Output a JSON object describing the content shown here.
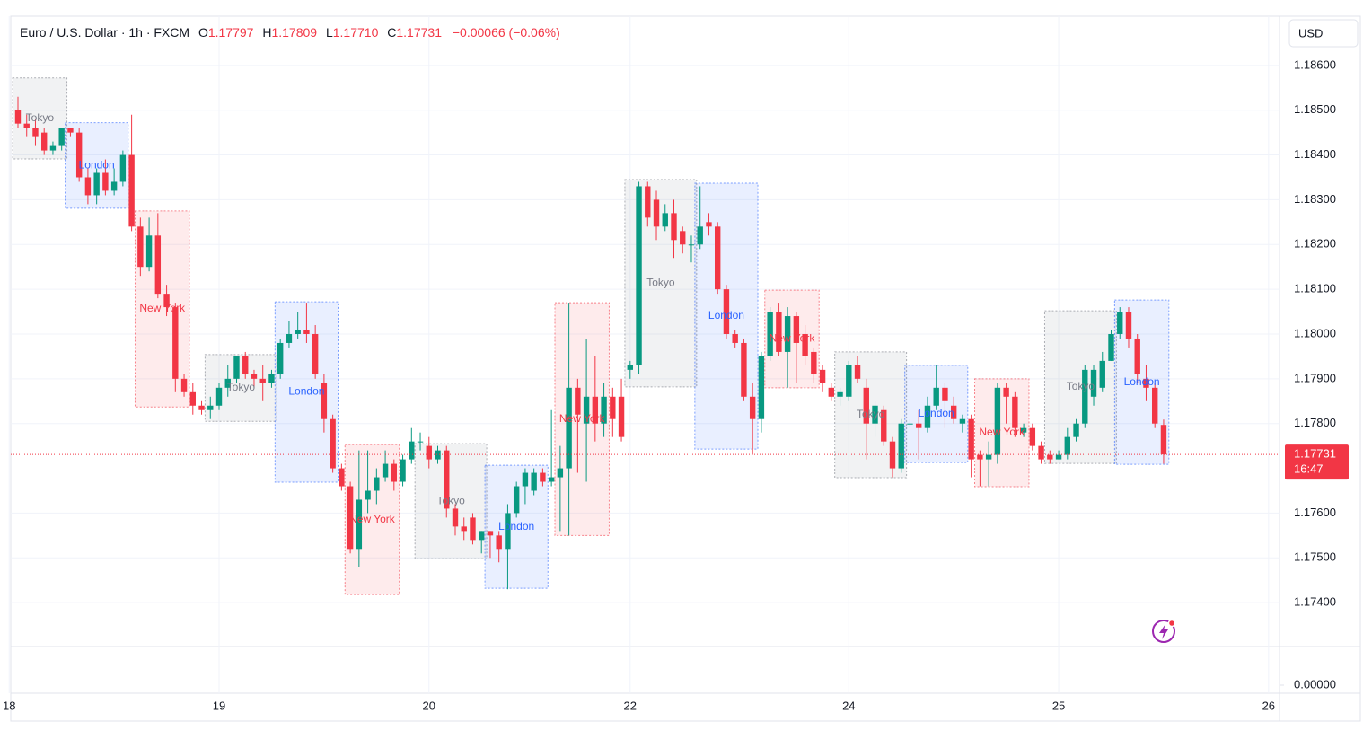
{
  "chart_data": {
    "type": "candlestick",
    "title": "Euro / U.S. Dollar · 1h · FXCM",
    "legend": [
      {
        "label": "O",
        "value": "1.17797"
      },
      {
        "label": "H",
        "value": "1.17809"
      },
      {
        "label": "L",
        "value": "1.17710"
      },
      {
        "label": "C",
        "value": "1.17731"
      }
    ],
    "change": "−0.00066 (−0.06%)",
    "currency": "USD",
    "countdown": "16:47",
    "up_color": "#089981",
    "down_color": "#f23645",
    "grid": true,
    "open": [
      1.185,
      1.1847,
      1.1846,
      1.1845,
      1.1841,
      1.1842,
      1.1846,
      1.1845,
      1.1835,
      1.1831,
      1.1836,
      1.1832,
      1.1834,
      1.184,
      1.1824,
      1.1815,
      1.1822,
      1.1809,
      1.1806,
      1.179,
      1.1787,
      1.1784,
      1.1783,
      1.1784,
      1.1788,
      1.179,
      1.1795,
      1.1791,
      1.179,
      1.1789,
      1.1791,
      1.1798,
      1.18,
      1.1801,
      1.18,
      1.1789,
      1.1781,
      1.177,
      1.1766,
      1.1752,
      1.1763,
      1.1765,
      1.1768,
      1.1771,
      1.1767,
      1.1772,
      1.1776,
      1.1775,
      1.1772,
      1.1774,
      1.1761,
      1.1757,
      1.1759,
      1.1754,
      1.1756,
      1.1755,
      1.1752,
      1.176,
      1.1766,
      1.1765,
      1.1769,
      1.1767,
      1.1768,
      1.177,
      1.1788,
      1.178,
      1.1786,
      1.178,
      1.1786,
      1.1786,
      1.1792,
      1.1793,
      1.1833,
      1.183,
      1.1824,
      1.1827,
      1.1823,
      1.182,
      1.182,
      1.1825,
      1.1824,
      1.181,
      1.18,
      1.1798,
      1.1786,
      1.1781,
      1.1795,
      1.1805,
      1.1796,
      1.1804,
      1.18,
      1.1796,
      1.1792,
      1.1788,
      1.1786,
      1.1786,
      1.1793,
      1.1788,
      1.178,
      1.1783,
      1.1776,
      1.177,
      1.178,
      1.178,
      1.1779,
      1.1784,
      1.1788,
      1.1784,
      1.178,
      1.1781,
      1.1773,
      1.1772,
      1.1773,
      1.1788,
      1.1786,
      1.1778,
      1.1779,
      1.1775,
      1.1773,
      1.1772,
      1.1773,
      1.1777,
      1.178,
      1.1786,
      1.1788,
      1.1794,
      1.18,
      1.1805,
      1.1799,
      1.179,
      1.1788,
      1.17797
    ],
    "high": [
      1.1853,
      1.1849,
      1.1848,
      1.1846,
      1.1843,
      1.1846,
      1.1846,
      1.1846,
      1.1837,
      1.1837,
      1.1839,
      1.1837,
      1.1841,
      1.1849,
      1.1826,
      1.1826,
      1.1827,
      1.1811,
      1.1807,
      1.1791,
      1.1789,
      1.1785,
      1.1786,
      1.1789,
      1.1793,
      1.1795,
      1.1796,
      1.1792,
      1.1793,
      1.1792,
      1.1799,
      1.1803,
      1.1805,
      1.1807,
      1.1802,
      1.1791,
      1.1782,
      1.1771,
      1.1767,
      1.1774,
      1.1774,
      1.177,
      1.1774,
      1.1772,
      1.1773,
      1.1779,
      1.1778,
      1.1777,
      1.1775,
      1.1775,
      1.1762,
      1.1759,
      1.176,
      1.1756,
      1.1756,
      1.1756,
      1.1762,
      1.1767,
      1.177,
      1.177,
      1.177,
      1.1783,
      1.1775,
      1.1807,
      1.179,
      1.1799,
      1.1795,
      1.1789,
      1.1788,
      1.179,
      1.1794,
      1.1834,
      1.1834,
      1.1832,
      1.1829,
      1.183,
      1.1824,
      1.1822,
      1.1833,
      1.1827,
      1.1825,
      1.1811,
      1.1801,
      1.1799,
      1.1789,
      1.1796,
      1.1806,
      1.1807,
      1.1806,
      1.1805,
      1.1802,
      1.1797,
      1.1793,
      1.1789,
      1.1788,
      1.1794,
      1.1795,
      1.179,
      1.1785,
      1.1784,
      1.1777,
      1.1781,
      1.1781,
      1.1783,
      1.1786,
      1.1793,
      1.1789,
      1.1786,
      1.1782,
      1.1782,
      1.1774,
      1.1776,
      1.1789,
      1.1789,
      1.1787,
      1.178,
      1.178,
      1.1776,
      1.1774,
      1.1774,
      1.1779,
      1.1781,
      1.1793,
      1.1793,
      1.1796,
      1.1801,
      1.1806,
      1.1806,
      1.18,
      1.1793,
      1.1789,
      1.17809
    ],
    "low": [
      1.1846,
      1.1844,
      1.1842,
      1.184,
      1.184,
      1.1841,
      1.1844,
      1.1834,
      1.1829,
      1.1829,
      1.1831,
      1.1831,
      1.1833,
      1.1823,
      1.1813,
      1.1814,
      1.1808,
      1.1804,
      1.1787,
      1.1786,
      1.1782,
      1.1782,
      1.1781,
      1.1783,
      1.1786,
      1.1789,
      1.179,
      1.1788,
      1.1785,
      1.1788,
      1.179,
      1.1797,
      1.1799,
      1.1798,
      1.179,
      1.1778,
      1.1769,
      1.1765,
      1.1751,
      1.1748,
      1.176,
      1.1762,
      1.1767,
      1.1765,
      1.1766,
      1.1771,
      1.1774,
      1.177,
      1.1771,
      1.1759,
      1.1755,
      1.1754,
      1.1753,
      1.1751,
      1.175,
      1.1749,
      1.1743,
      1.1759,
      1.1762,
      1.1764,
      1.1766,
      1.1766,
      1.1756,
      1.1755,
      1.1769,
      1.1767,
      1.1776,
      1.1777,
      1.1777,
      1.1776,
      1.179,
      1.1791,
      1.1824,
      1.1821,
      1.1823,
      1.1817,
      1.1818,
      1.1816,
      1.1819,
      1.1822,
      1.1809,
      1.1799,
      1.1797,
      1.1785,
      1.1773,
      1.1778,
      1.1794,
      1.1795,
      1.1788,
      1.1789,
      1.1793,
      1.1789,
      1.1787,
      1.1785,
      1.1784,
      1.1785,
      1.1789,
      1.1772,
      1.1777,
      1.1775,
      1.1768,
      1.1769,
      1.1779,
      1.1772,
      1.1778,
      1.1783,
      1.1779,
      1.178,
      1.1778,
      1.1768,
      1.1766,
      1.1766,
      1.1771,
      1.178,
      1.1777,
      1.1777,
      1.1774,
      1.1771,
      1.1771,
      1.1772,
      1.1772,
      1.1776,
      1.1779,
      1.1784,
      1.1787,
      1.1794,
      1.1799,
      1.1797,
      1.1789,
      1.1785,
      1.1779,
      1.1771
    ],
    "close": [
      1.1847,
      1.1846,
      1.1844,
      1.1841,
      1.1842,
      1.1846,
      1.1845,
      1.1835,
      1.1831,
      1.1836,
      1.1832,
      1.1834,
      1.184,
      1.1824,
      1.1815,
      1.1822,
      1.1809,
      1.1806,
      1.179,
      1.1787,
      1.1784,
      1.1783,
      1.1784,
      1.1788,
      1.179,
      1.1795,
      1.1791,
      1.179,
      1.1789,
      1.1791,
      1.1798,
      1.18,
      1.1801,
      1.18,
      1.1791,
      1.1781,
      1.177,
      1.1766,
      1.1752,
      1.1763,
      1.1765,
      1.1768,
      1.1771,
      1.1767,
      1.1772,
      1.1776,
      1.1776,
      1.1772,
      1.1774,
      1.1761,
      1.1757,
      1.1756,
      1.1754,
      1.1756,
      1.1755,
      1.1752,
      1.176,
      1.1766,
      1.1769,
      1.1769,
      1.1767,
      1.1768,
      1.177,
      1.1788,
      1.1782,
      1.1786,
      1.178,
      1.1786,
      1.1781,
      1.1777,
      1.1793,
      1.1833,
      1.1826,
      1.1824,
      1.1827,
      1.1821,
      1.182,
      1.182,
      1.1824,
      1.1824,
      1.181,
      1.18,
      1.1798,
      1.1786,
      1.1781,
      1.1795,
      1.1805,
      1.1796,
      1.1804,
      1.1798,
      1.1795,
      1.1791,
      1.1789,
      1.1786,
      1.1787,
      1.1793,
      1.179,
      1.178,
      1.1784,
      1.1776,
      1.177,
      1.178,
      1.178,
      1.1779,
      1.1784,
      1.1788,
      1.1785,
      1.1781,
      1.1781,
      1.1772,
      1.1772,
      1.1773,
      1.1788,
      1.1786,
      1.1779,
      1.1779,
      1.1775,
      1.1772,
      1.1772,
      1.1773,
      1.1777,
      1.178,
      1.1792,
      1.1792,
      1.1794,
      1.18,
      1.1805,
      1.1799,
      1.1791,
      1.1788,
      1.178,
      1.17731
    ],
    "sessions": [
      {
        "name": "Tokyo",
        "start": 0,
        "end": 5,
        "high": 1.18572,
        "low": 1.18391
      },
      {
        "name": "London",
        "start": 6,
        "end": 12,
        "high": 1.18472,
        "low": 1.18281
      },
      {
        "name": "New York",
        "start": 14,
        "end": 19,
        "high": 1.18275,
        "low": 1.17837
      },
      {
        "name": "Tokyo",
        "start": 22,
        "end": 29,
        "high": 1.17954,
        "low": 1.17805
      },
      {
        "name": "London",
        "start": 30,
        "end": 36,
        "high": 1.18072,
        "low": 1.17669
      },
      {
        "name": "New York",
        "start": 38,
        "end": 43,
        "high": 1.17753,
        "low": 1.17418
      },
      {
        "name": "Tokyo",
        "start": 46,
        "end": 53,
        "high": 1.17755,
        "low": 1.17498
      },
      {
        "name": "London",
        "start": 54,
        "end": 60,
        "high": 1.17707,
        "low": 1.17432
      },
      {
        "name": "New York",
        "start": 62,
        "end": 67,
        "high": 1.1807,
        "low": 1.1755
      },
      {
        "name": "Tokyo",
        "start": 70,
        "end": 77,
        "high": 1.18345,
        "low": 1.17882
      },
      {
        "name": "London",
        "start": 78,
        "end": 84,
        "high": 1.18337,
        "low": 1.17743
      },
      {
        "name": "New York",
        "start": 86,
        "end": 91,
        "high": 1.18098,
        "low": 1.1788
      },
      {
        "name": "Tokyo",
        "start": 94,
        "end": 101,
        "high": 1.1796,
        "low": 1.17679
      },
      {
        "name": "London",
        "start": 102,
        "end": 108,
        "high": 1.1793,
        "low": 1.17713
      },
      {
        "name": "New York",
        "start": 110,
        "end": 115,
        "high": 1.179,
        "low": 1.17659
      },
      {
        "name": "Tokyo",
        "start": 118,
        "end": 125,
        "high": 1.18052,
        "low": 1.17711
      },
      {
        "name": "London",
        "start": 126,
        "end": 131,
        "high": 1.18076,
        "low": 1.17709
      }
    ],
    "session_colors": {
      "Tokyo": "#787b86",
      "London": "#2962ff",
      "New York": "#f23645"
    },
    "xlim": [
      -0.82,
      144.25
    ],
    "xticks": [
      {
        "value": -1,
        "label": "18"
      },
      {
        "value": 23,
        "label": "19"
      },
      {
        "value": 47,
        "label": "20"
      },
      {
        "value": 70,
        "label": "22"
      },
      {
        "value": 95,
        "label": "24"
      },
      {
        "value": 119,
        "label": "25"
      },
      {
        "value": 143,
        "label": "26"
      }
    ],
    "ylim": [
      1.17302,
      1.1871
    ],
    "yticks": [
      {
        "value": 1.186,
        "label": "1.18600"
      },
      {
        "value": 1.185,
        "label": "1.18500"
      },
      {
        "value": 1.184,
        "label": "1.18400"
      },
      {
        "value": 1.183,
        "label": "1.18300"
      },
      {
        "value": 1.182,
        "label": "1.18200"
      },
      {
        "value": 1.181,
        "label": "1.18100"
      },
      {
        "value": 1.18,
        "label": "1.18000"
      },
      {
        "value": 1.179,
        "label": "1.17900"
      },
      {
        "value": 1.178,
        "label": "1.17800"
      },
      {
        "value": 1.176,
        "label": "1.17600"
      },
      {
        "value": 1.175,
        "label": "1.17500"
      },
      {
        "value": 1.174,
        "label": "1.17400"
      }
    ],
    "lower_pane": {
      "yticks": [
        {
          "value": 0,
          "label": "0.00000"
        }
      ]
    }
  }
}
